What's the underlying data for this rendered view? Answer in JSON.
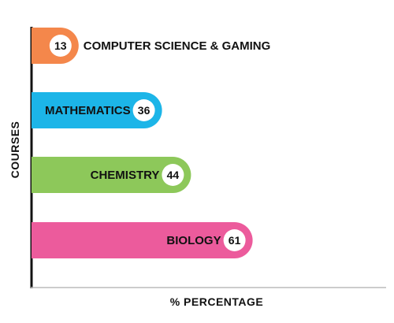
{
  "chart_data": {
    "type": "bar",
    "orientation": "horizontal",
    "categories": [
      "COMPUTER SCIENCE & GAMING",
      "MATHEMATICS",
      "CHEMISTRY",
      "BIOLOGY"
    ],
    "values": [
      13,
      36,
      44,
      61
    ],
    "value_labels": [
      "13",
      "36",
      "44",
      "61"
    ],
    "colors": [
      "#F4874B",
      "#1CB5E8",
      "#8DC85A",
      "#EC5B9C"
    ],
    "xlabel": "% PERCENTAGE",
    "ylabel": "COURSES",
    "grid": false,
    "legend": "none"
  }
}
